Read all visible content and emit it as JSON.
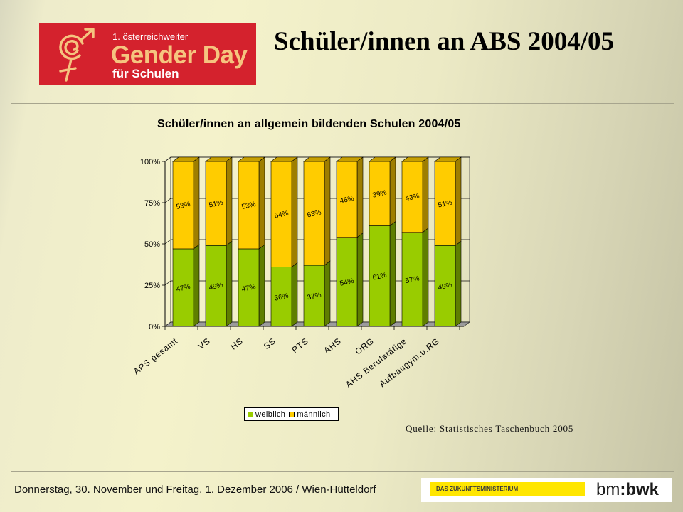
{
  "theme": {
    "logo_background": "#d4222d",
    "logo_accent": "#f5c47f",
    "ministry_yellow": "#ffe600"
  },
  "logo": {
    "icon": "gender-symbol-icon",
    "line1": "1. österreichweiter",
    "line2": "Gender Day",
    "line3": "für Schulen"
  },
  "slide": {
    "title": "Schüler/innen an ABS 2004/05",
    "source": "Quelle: Statistisches Taschenbuch 2005",
    "footer": "Donnerstag, 30. November und Freitag, 1. Dezember 2006 / Wien-Hütteldorf"
  },
  "ministry_logo": {
    "tagline": "DAS ZUKUNFTSMINISTERIUM",
    "prefix": "bm",
    "suffix": ":bwk"
  },
  "chart_data": {
    "type": "bar",
    "stacking": "percent",
    "style": "3d",
    "title": "Schüler/innen an allgemein bildenden Schulen 2004/05",
    "categories": [
      "APS gesamt",
      "VS",
      "HS",
      "SS",
      "PTS",
      "AHS",
      "ORG",
      "AHS Berufstätige",
      "Aufbaugym.u.RG"
    ],
    "series": [
      {
        "name": "weiblich",
        "values": [
          47,
          49,
          47,
          36,
          37,
          54,
          61,
          57,
          49
        ],
        "color": "#99cc00"
      },
      {
        "name": "männlich",
        "values": [
          53,
          51,
          53,
          64,
          63,
          46,
          39,
          43,
          51
        ],
        "color": "#ffcc00"
      }
    ],
    "value_suffix": "%",
    "ylim": [
      0,
      100
    ],
    "ytick_values": [
      0,
      25,
      50,
      75,
      100
    ],
    "ytick_labels": [
      "0%",
      "25%",
      "50%",
      "75%",
      "100%"
    ],
    "xlabel": "",
    "ylabel": "",
    "grid": true,
    "legend": "bottom"
  }
}
